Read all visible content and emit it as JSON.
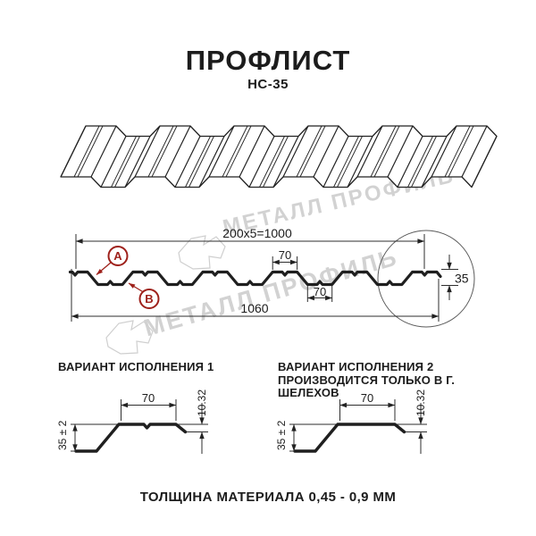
{
  "header": {
    "title": "ПРОФЛИСТ",
    "subtitle": "НС-35"
  },
  "cross_section": {
    "dim_width_useful": "200x5=1000",
    "dim_width_total": "1060",
    "dim_rib_top": "70",
    "dim_rib_bottom": "70",
    "dim_height": "35",
    "label_a": "А",
    "label_b": "В"
  },
  "variants": [
    {
      "heading_line1": "ВАРИАНТ ИСПОЛНЕНИЯ 1",
      "heading_line2": "",
      "dim_top": "70",
      "dim_lip": "10.32",
      "dim_height": "35 ± 2"
    },
    {
      "heading_line1": "ВАРИАНТ ИСПОЛНЕНИЯ 2",
      "heading_line2": "ПРОИЗВОДИТСЯ ТОЛЬКО В Г. ШЕЛЕХОВ",
      "dim_top": "70",
      "dim_lip": "10.32",
      "dim_height": "35 ± 2"
    }
  ],
  "footer": {
    "note": "ТОЛЩИНА МАТЕРИАЛА 0,45 - 0,9 ММ"
  },
  "watermark": {
    "text": "МЕТАЛЛ ПРОФИЛЬ"
  },
  "colors": {
    "line": "#1f1f1f",
    "dim_line": "#2e2e2e",
    "accent_red": "#9e211b",
    "watermark": "#c8c8c8"
  }
}
